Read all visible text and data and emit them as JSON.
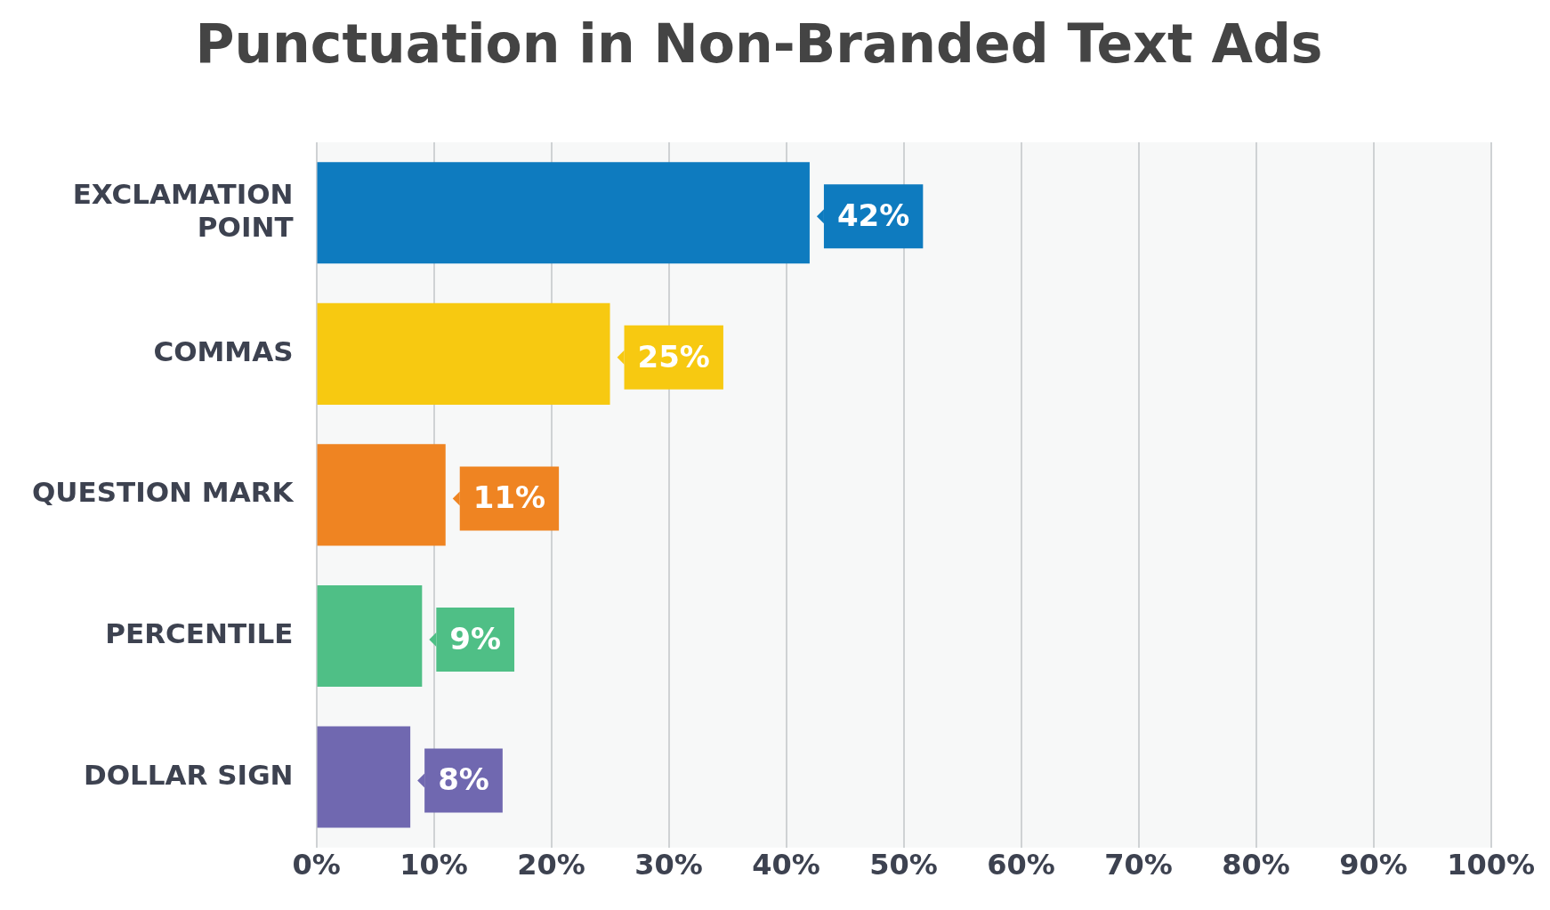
{
  "chart_data": {
    "type": "bar",
    "orientation": "horizontal",
    "title": "Punctuation in Non-Branded Text Ads",
    "categories": [
      "EXCLAMATION POINT",
      "COMMAS",
      "QUESTION MARK",
      "PERCENTILE",
      "DOLLAR SIGN"
    ],
    "values": [
      42,
      25,
      11,
      9,
      8
    ],
    "colors": [
      "#0e7bbf",
      "#f7c911",
      "#ef8422",
      "#4fbf86",
      "#7068b0"
    ],
    "value_labels": [
      "42%",
      "25%",
      "11%",
      "9%",
      "8%"
    ],
    "xlim": [
      0,
      100
    ],
    "xticks": [
      {
        "value": 0,
        "label": "0%"
      },
      {
        "value": 10,
        "label": "10%"
      },
      {
        "value": 20,
        "label": "20%"
      },
      {
        "value": 30,
        "label": "30%"
      },
      {
        "value": 40,
        "label": "40%"
      },
      {
        "value": 50,
        "label": "50%"
      },
      {
        "value": 60,
        "label": "60%"
      },
      {
        "value": 70,
        "label": "70%"
      },
      {
        "value": 80,
        "label": "80%"
      },
      {
        "value": 90,
        "label": "90%"
      },
      {
        "value": 100,
        "label": "100%"
      }
    ],
    "grid": "x",
    "legend": false
  }
}
